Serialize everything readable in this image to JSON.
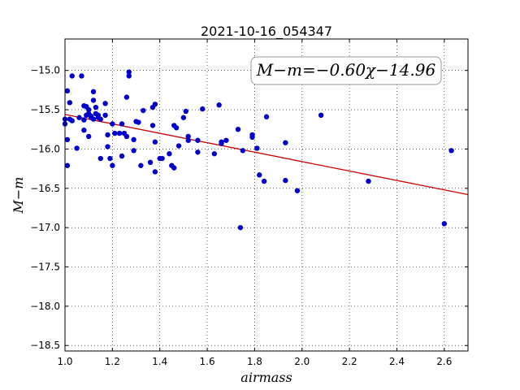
{
  "chart_data": {
    "type": "scatter",
    "title": "2021-10-16_054347",
    "xlabel": "airmass",
    "ylabel": "M−m",
    "xlim": [
      1.0,
      2.7
    ],
    "ylim": [
      -18.57,
      -14.6
    ],
    "ytick_labels": [
      "−15.0",
      "−15.5",
      "−16.0",
      "−16.5",
      "−17.0",
      "−17.5",
      "−18.0",
      "−18.5"
    ],
    "xtick_labels": [
      "1.0",
      "1.2",
      "1.4",
      "1.6",
      "1.8",
      "2.0",
      "2.2",
      "2.4",
      "2.6"
    ],
    "grid": true,
    "annotation": "M−m=−0.60χ−14.96",
    "annotation_position": "top-right",
    "point_color": "#0000cc",
    "fit_color": "#cc0000",
    "fit_line": {
      "slope": -0.6,
      "intercept": -14.96
    },
    "points": [
      [
        1.0,
        -15.62
      ],
      [
        1.0,
        -15.68
      ],
      [
        1.01,
        -15.88
      ],
      [
        1.01,
        -16.21
      ],
      [
        1.01,
        -15.26
      ],
      [
        1.02,
        -15.41
      ],
      [
        1.02,
        -15.62
      ],
      [
        1.03,
        -15.07
      ],
      [
        1.03,
        -15.64
      ],
      [
        1.05,
        -15.99
      ],
      [
        1.06,
        -15.6
      ],
      [
        1.07,
        -15.07
      ],
      [
        1.08,
        -15.45
      ],
      [
        1.08,
        -15.76
      ],
      [
        1.08,
        -15.63
      ],
      [
        1.09,
        -15.57
      ],
      [
        1.09,
        -15.46
      ],
      [
        1.1,
        -15.5
      ],
      [
        1.1,
        -15.55
      ],
      [
        1.1,
        -15.84
      ],
      [
        1.11,
        -15.58
      ],
      [
        1.11,
        -15.6
      ],
      [
        1.12,
        -15.27
      ],
      [
        1.12,
        -15.38
      ],
      [
        1.12,
        -15.62
      ],
      [
        1.13,
        -15.47
      ],
      [
        1.13,
        -15.55
      ],
      [
        1.14,
        -15.57
      ],
      [
        1.14,
        -15.6
      ],
      [
        1.15,
        -15.62
      ],
      [
        1.15,
        -16.12
      ],
      [
        1.17,
        -15.42
      ],
      [
        1.17,
        -15.57
      ],
      [
        1.18,
        -15.82
      ],
      [
        1.18,
        -15.97
      ],
      [
        1.19,
        -16.12
      ],
      [
        1.2,
        -15.68
      ],
      [
        1.2,
        -16.21
      ],
      [
        1.21,
        -15.8
      ],
      [
        1.23,
        -15.8
      ],
      [
        1.24,
        -15.68
      ],
      [
        1.24,
        -16.09
      ],
      [
        1.25,
        -15.8
      ],
      [
        1.26,
        -15.34
      ],
      [
        1.26,
        -15.84
      ],
      [
        1.27,
        -15.02
      ],
      [
        1.27,
        -15.07
      ],
      [
        1.29,
        -16.02
      ],
      [
        1.29,
        -15.88
      ],
      [
        1.3,
        -15.65
      ],
      [
        1.31,
        -15.66
      ],
      [
        1.32,
        -16.21
      ],
      [
        1.33,
        -15.51
      ],
      [
        1.36,
        -16.17
      ],
      [
        1.37,
        -15.47
      ],
      [
        1.37,
        -15.7
      ],
      [
        1.38,
        -15.43
      ],
      [
        1.38,
        -15.91
      ],
      [
        1.38,
        -16.29
      ],
      [
        1.4,
        -16.12
      ],
      [
        1.41,
        -16.12
      ],
      [
        1.44,
        -16.06
      ],
      [
        1.45,
        -16.21
      ],
      [
        1.46,
        -16.24
      ],
      [
        1.46,
        -15.7
      ],
      [
        1.47,
        -15.73
      ],
      [
        1.48,
        -15.96
      ],
      [
        1.5,
        -15.6
      ],
      [
        1.51,
        -15.52
      ],
      [
        1.52,
        -15.89
      ],
      [
        1.52,
        -15.84
      ],
      [
        1.56,
        -15.89
      ],
      [
        1.56,
        -16.04
      ],
      [
        1.58,
        -15.49
      ],
      [
        1.63,
        -16.06
      ],
      [
        1.65,
        -15.44
      ],
      [
        1.66,
        -15.91
      ],
      [
        1.66,
        -15.93
      ],
      [
        1.68,
        -15.89
      ],
      [
        1.73,
        -15.75
      ],
      [
        1.74,
        -17.0
      ],
      [
        1.75,
        -16.02
      ],
      [
        1.79,
        -15.82
      ],
      [
        1.79,
        -15.85
      ],
      [
        1.81,
        -15.99
      ],
      [
        1.82,
        -16.33
      ],
      [
        1.84,
        -16.41
      ],
      [
        1.85,
        -15.59
      ],
      [
        1.93,
        -15.92
      ],
      [
        1.93,
        -16.4
      ],
      [
        1.98,
        -16.53
      ],
      [
        2.08,
        -15.57
      ],
      [
        2.28,
        -16.41
      ],
      [
        2.6,
        -16.95
      ],
      [
        2.63,
        -16.02
      ]
    ]
  }
}
